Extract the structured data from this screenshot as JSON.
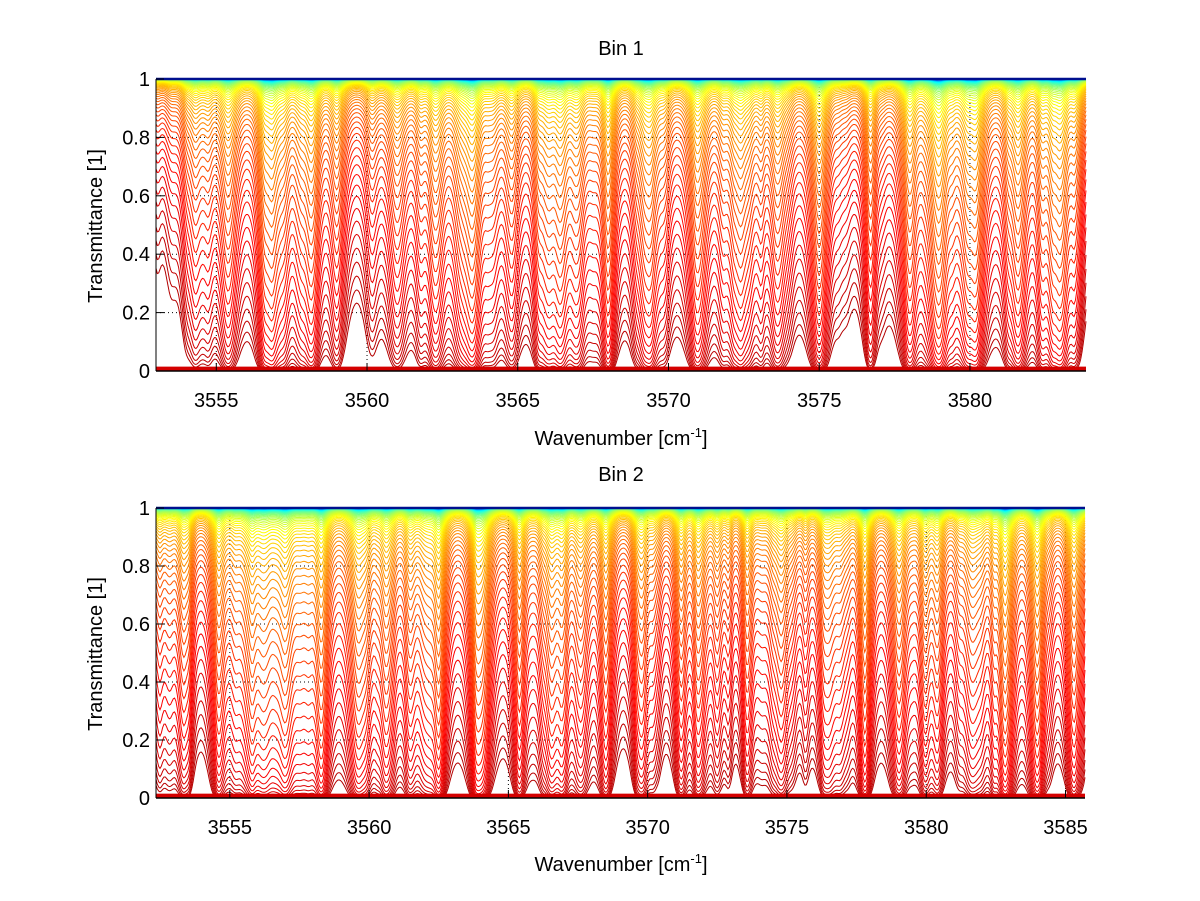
{
  "chart_data": [
    {
      "type": "line",
      "title": "Bin 1",
      "xlabel": "Wavenumber [cm",
      "xlabel_superscript": "-1",
      "xlabel_suffix": "]",
      "ylabel": "Transmittance [1]",
      "xlim": [
        3553.0,
        3583.85
      ],
      "ylim": [
        0,
        1
      ],
      "xticks": [
        3555,
        3560,
        3565,
        3570,
        3575,
        3580
      ],
      "xtick_labels": [
        "3555",
        "3560",
        "3565",
        "3570",
        "3575",
        "3580"
      ],
      "yticks": [
        0,
        0.2,
        0.4,
        0.6,
        0.8,
        1
      ],
      "ytick_labels": [
        "0",
        "0.2",
        "0.4",
        "0.6",
        "0.8",
        "1"
      ],
      "grid": true,
      "legend": "none",
      "colormap": "jet (blue = highest transmittance, red = lowest)",
      "series_count": 60,
      "series_description": "Transmittance spectra for increasing absorber amount",
      "strong_lines_cm1": [
        3554.3,
        3555.4,
        3556.6,
        3557.8,
        3559.0,
        3561.0,
        3562.3,
        3563.5,
        3564.8,
        3566.0,
        3567.0,
        3568.0,
        3569.2,
        3571.0,
        3572.4,
        3573.6,
        3575.0,
        3576.7,
        3578.0,
        3579.0,
        3580.2,
        3581.6,
        3583.0
      ]
    },
    {
      "type": "line",
      "title": "Bin 2",
      "xlabel": "Wavenumber [cm",
      "xlabel_superscript": "-1",
      "xlabel_suffix": "]",
      "ylabel": "Transmittance [1]",
      "xlim": [
        3552.35,
        3585.7
      ],
      "ylim": [
        0,
        1
      ],
      "xticks": [
        3555,
        3560,
        3565,
        3570,
        3575,
        3580,
        3585
      ],
      "xtick_labels": [
        "3555",
        "3560",
        "3565",
        "3570",
        "3575",
        "3580",
        "3585"
      ],
      "yticks": [
        0,
        0.2,
        0.4,
        0.6,
        0.8,
        1
      ],
      "ytick_labels": [
        "0",
        "0.2",
        "0.4",
        "0.6",
        "0.8",
        "1"
      ],
      "grid": true,
      "legend": "none",
      "colormap": "jet (blue = highest transmittance, red = lowest)",
      "series_count": 60,
      "series_description": "Transmittance spectra for increasing absorber amount",
      "strong_lines_cm1": [
        3553.3,
        3554.6,
        3555.8,
        3557.0,
        3558.3,
        3559.6,
        3560.6,
        3561.5,
        3562.5,
        3564.0,
        3565.4,
        3566.6,
        3567.6,
        3568.5,
        3569.8,
        3571.2,
        3572.5,
        3573.6,
        3574.8,
        3576.5,
        3577.8,
        3579.0,
        3580.4,
        3581.6,
        3582.8,
        3584.0,
        3585.3
      ]
    }
  ]
}
